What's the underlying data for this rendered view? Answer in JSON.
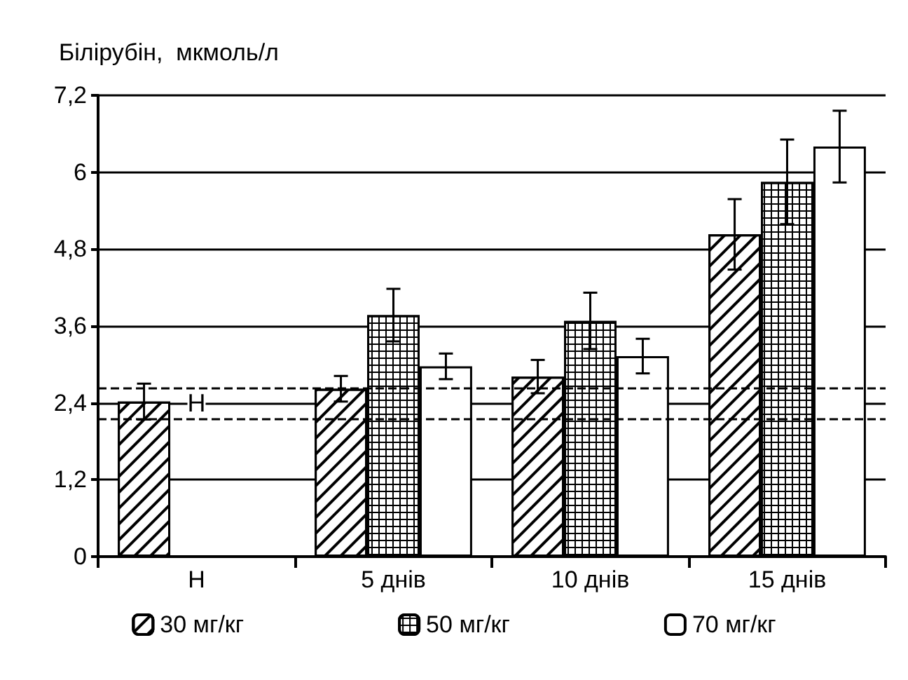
{
  "chart_data": {
    "type": "bar",
    "ylabel": "Білірубін,  мкмоль/л",
    "categories": [
      "Н",
      "5 днів",
      "10 днів",
      "15 днів"
    ],
    "series": [
      {
        "name": "30 мг/кг",
        "color": "#ffffff",
        "values": [
          2.42,
          2.62,
          2.81,
          5.03
        ],
        "errors": [
          0.28,
          0.2,
          0.26,
          0.55
        ]
      },
      {
        "name": "50 мг/кг",
        "color": "#ffffff",
        "values": [
          null,
          3.77,
          3.68,
          5.85
        ],
        "errors": [
          null,
          0.41,
          0.44,
          0.66
        ]
      },
      {
        "name": "70 мг/кг",
        "color": "#ffffff",
        "values": [
          null,
          2.97,
          3.13,
          6.4
        ],
        "errors": [
          null,
          0.2,
          0.27,
          0.56
        ]
      }
    ],
    "ylim": [
      0,
      7.2
    ],
    "yticks": [
      0,
      {
        "value": 1.2,
        "label": "1,2"
      },
      {
        "value": 2.4,
        "label": "2,4"
      },
      {
        "value": 3.6,
        "label": "3,6"
      },
      {
        "value": 4.8,
        "label": "4,8"
      },
      6,
      {
        "value": 7.2,
        "label": "7,2"
      }
    ],
    "ref_lines": [
      {
        "axis": "y",
        "value": 2.64,
        "line_style": "dashed"
      },
      {
        "axis": "y",
        "value": 2.14,
        "line_style": "dashed"
      }
    ],
    "annotations": [
      {
        "text": "Н",
        "x": "Н",
        "y": 2.4
      }
    ],
    "grid": "y",
    "legend": "bottom"
  }
}
